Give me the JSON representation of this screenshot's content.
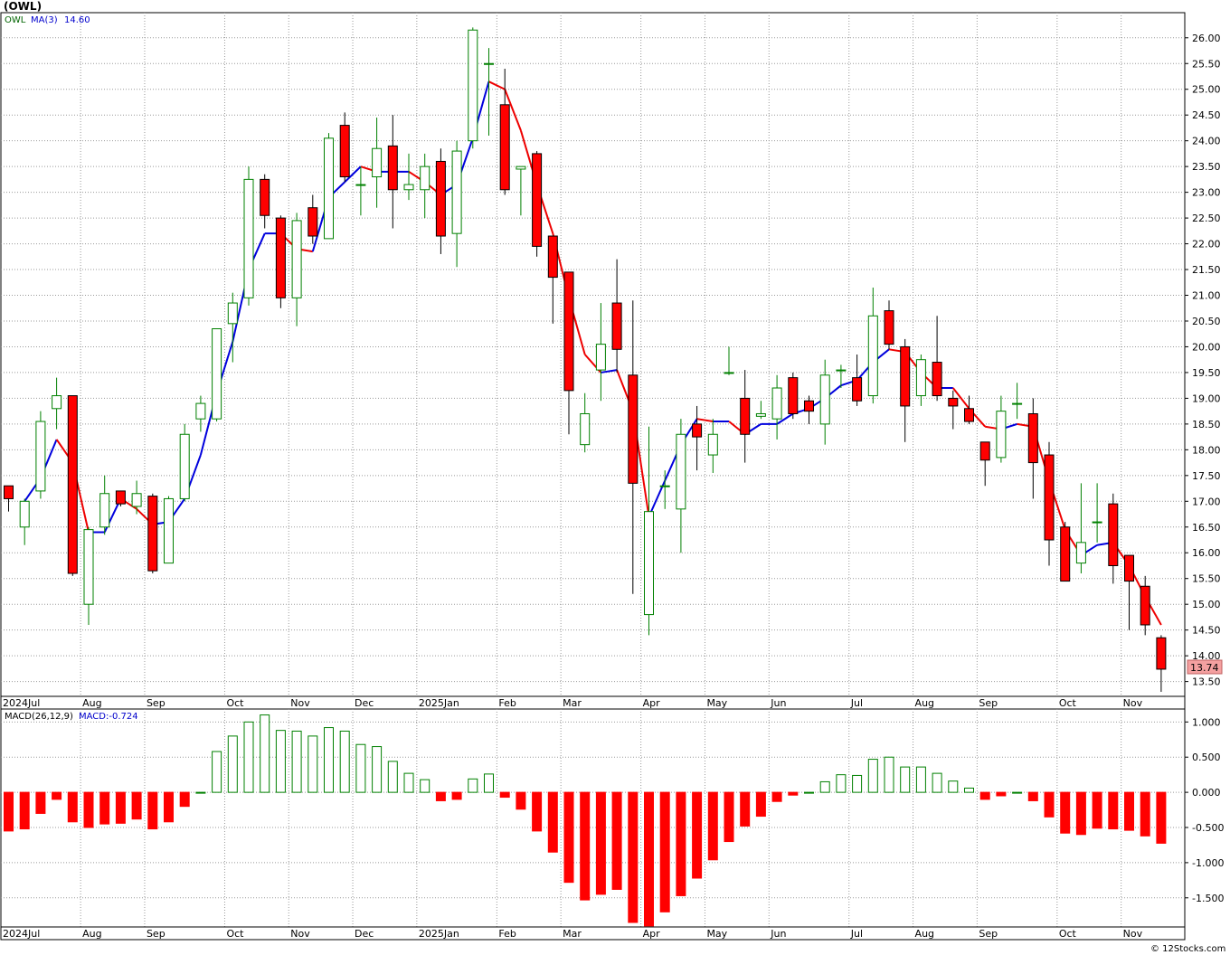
{
  "header": {
    "symbol": "(OWL)",
    "credit": "© 12Stocks.com"
  },
  "price_panel": {
    "legend_symbol": "OWL",
    "legend_ma_label": "MA(3)",
    "legend_ma_value": "14.60",
    "last_price_tag": "13.74"
  },
  "macd_panel": {
    "legend_label": "MACD(26,12,9)",
    "legend_value": "MACD:-0.724"
  },
  "colors": {
    "up": "#008000",
    "down": "#ff0000",
    "ma_up": "#0000dd",
    "ma_down": "#ee0000",
    "grid": "#999999",
    "tag_bg": "#f4a0a0"
  },
  "chart_data": [
    {
      "type": "candlestick",
      "title": "(OWL)",
      "period": "weekly",
      "ylim": [
        13.3,
        26.4
      ],
      "yticks": [
        "13.50",
        "14.00",
        "14.50",
        "15.00",
        "15.50",
        "16.00",
        "16.50",
        "17.00",
        "17.50",
        "18.00",
        "18.50",
        "19.00",
        "19.50",
        "20.00",
        "20.50",
        "21.00",
        "21.50",
        "22.00",
        "22.50",
        "23.00",
        "23.50",
        "24.00",
        "24.50",
        "25.00",
        "25.50",
        "26.00"
      ],
      "month_labels": [
        {
          "label": "2024Jul",
          "week": 0
        },
        {
          "label": "Aug",
          "week": 5
        },
        {
          "label": "Sep",
          "week": 9
        },
        {
          "label": "Oct",
          "week": 14
        },
        {
          "label": "Nov",
          "week": 18
        },
        {
          "label": "Dec",
          "week": 22
        },
        {
          "label": "2025Jan",
          "week": 26
        },
        {
          "label": "Feb",
          "week": 31
        },
        {
          "label": "Mar",
          "week": 35
        },
        {
          "label": "Apr",
          "week": 40
        },
        {
          "label": "May",
          "week": 44
        },
        {
          "label": "Jun",
          "week": 48
        },
        {
          "label": "Jul",
          "week": 53
        },
        {
          "label": "Aug",
          "week": 57
        },
        {
          "label": "Sep",
          "week": 61
        },
        {
          "label": "Oct",
          "week": 66
        },
        {
          "label": "Nov",
          "week": 70
        }
      ],
      "series": [
        {
          "name": "OWL",
          "candles": [
            {
              "o": 17.3,
              "h": 17.3,
              "l": 16.8,
              "c": 17.05
            },
            {
              "o": 16.5,
              "h": 17.05,
              "l": 16.15,
              "c": 17.0
            },
            {
              "o": 17.2,
              "h": 18.75,
              "l": 17.05,
              "c": 18.55
            },
            {
              "o": 18.8,
              "h": 19.4,
              "l": 18.4,
              "c": 19.05
            },
            {
              "o": 19.05,
              "h": 19.05,
              "l": 15.55,
              "c": 15.6
            },
            {
              "o": 15.0,
              "h": 16.5,
              "l": 14.6,
              "c": 16.45
            },
            {
              "o": 16.5,
              "h": 17.5,
              "l": 16.35,
              "c": 17.15
            },
            {
              "o": 17.2,
              "h": 17.2,
              "l": 16.9,
              "c": 16.95
            },
            {
              "o": 16.9,
              "h": 17.4,
              "l": 16.75,
              "c": 17.15
            },
            {
              "o": 17.1,
              "h": 17.15,
              "l": 15.6,
              "c": 15.65
            },
            {
              "o": 15.8,
              "h": 17.1,
              "l": 15.8,
              "c": 17.05
            },
            {
              "o": 17.05,
              "h": 18.5,
              "l": 17.0,
              "c": 18.3
            },
            {
              "o": 18.6,
              "h": 19.05,
              "l": 18.35,
              "c": 18.9
            },
            {
              "o": 18.6,
              "h": 20.35,
              "l": 18.55,
              "c": 20.35
            },
            {
              "o": 20.45,
              "h": 21.05,
              "l": 19.7,
              "c": 20.85
            },
            {
              "o": 20.95,
              "h": 23.5,
              "l": 20.8,
              "c": 23.25
            },
            {
              "o": 23.25,
              "h": 23.35,
              "l": 22.3,
              "c": 22.55
            },
            {
              "o": 22.5,
              "h": 22.55,
              "l": 20.75,
              "c": 20.95
            },
            {
              "o": 20.95,
              "h": 22.6,
              "l": 20.4,
              "c": 22.45
            },
            {
              "o": 22.7,
              "h": 22.95,
              "l": 22.0,
              "c": 22.15
            },
            {
              "o": 22.1,
              "h": 24.15,
              "l": 22.1,
              "c": 24.05
            },
            {
              "o": 24.3,
              "h": 24.55,
              "l": 23.2,
              "c": 23.3
            },
            {
              "o": 23.15,
              "h": 23.5,
              "l": 22.55,
              "c": 23.15
            },
            {
              "o": 23.3,
              "h": 24.45,
              "l": 22.7,
              "c": 23.85
            },
            {
              "o": 23.9,
              "h": 24.5,
              "l": 22.3,
              "c": 23.05
            },
            {
              "o": 23.05,
              "h": 23.75,
              "l": 22.85,
              "c": 23.15
            },
            {
              "o": 23.05,
              "h": 23.75,
              "l": 22.5,
              "c": 23.5
            },
            {
              "o": 23.6,
              "h": 23.85,
              "l": 21.8,
              "c": 22.15
            },
            {
              "o": 22.2,
              "h": 24.0,
              "l": 21.55,
              "c": 23.8
            },
            {
              "o": 24.0,
              "h": 26.2,
              "l": 23.85,
              "c": 26.15
            },
            {
              "o": 25.5,
              "h": 25.8,
              "l": 24.1,
              "c": 25.5
            },
            {
              "o": 24.7,
              "h": 25.4,
              "l": 22.95,
              "c": 23.05
            },
            {
              "o": 23.45,
              "h": 23.5,
              "l": 22.55,
              "c": 23.5
            },
            {
              "o": 23.75,
              "h": 23.8,
              "l": 21.75,
              "c": 21.95
            },
            {
              "o": 22.15,
              "h": 22.15,
              "l": 20.45,
              "c": 21.35
            },
            {
              "o": 21.45,
              "h": 21.45,
              "l": 18.3,
              "c": 19.15
            },
            {
              "o": 18.1,
              "h": 19.1,
              "l": 17.95,
              "c": 18.7
            },
            {
              "o": 19.55,
              "h": 20.85,
              "l": 18.95,
              "c": 20.05
            },
            {
              "o": 20.85,
              "h": 21.7,
              "l": 19.5,
              "c": 19.95
            },
            {
              "o": 19.45,
              "h": 20.9,
              "l": 15.2,
              "c": 17.35
            },
            {
              "o": 14.8,
              "h": 18.45,
              "l": 14.4,
              "c": 16.8
            },
            {
              "o": 17.3,
              "h": 17.6,
              "l": 16.85,
              "c": 17.3
            },
            {
              "o": 16.85,
              "h": 18.6,
              "l": 16.0,
              "c": 18.3
            },
            {
              "o": 18.5,
              "h": 18.85,
              "l": 17.6,
              "c": 18.25
            },
            {
              "o": 17.9,
              "h": 18.6,
              "l": 17.55,
              "c": 18.3
            },
            {
              "o": 19.5,
              "h": 20.0,
              "l": 19.45,
              "c": 19.5
            },
            {
              "o": 19.0,
              "h": 19.55,
              "l": 17.75,
              "c": 18.3
            },
            {
              "o": 18.65,
              "h": 18.95,
              "l": 18.6,
              "c": 18.7
            },
            {
              "o": 18.6,
              "h": 19.45,
              "l": 18.2,
              "c": 19.2
            },
            {
              "o": 19.4,
              "h": 19.5,
              "l": 18.6,
              "c": 18.7
            },
            {
              "o": 18.95,
              "h": 19.05,
              "l": 18.5,
              "c": 18.75
            },
            {
              "o": 18.5,
              "h": 19.75,
              "l": 18.1,
              "c": 19.45
            },
            {
              "o": 19.55,
              "h": 19.65,
              "l": 19.2,
              "c": 19.55
            },
            {
              "o": 19.4,
              "h": 19.85,
              "l": 18.85,
              "c": 18.95
            },
            {
              "o": 19.05,
              "h": 21.15,
              "l": 18.9,
              "c": 20.6
            },
            {
              "o": 20.7,
              "h": 20.9,
              "l": 19.95,
              "c": 20.05
            },
            {
              "o": 20.0,
              "h": 20.15,
              "l": 18.15,
              "c": 18.85
            },
            {
              "o": 19.05,
              "h": 19.85,
              "l": 18.85,
              "c": 19.75
            },
            {
              "o": 19.7,
              "h": 20.6,
              "l": 18.95,
              "c": 19.05
            },
            {
              "o": 19.0,
              "h": 19.15,
              "l": 18.4,
              "c": 18.85
            },
            {
              "o": 18.8,
              "h": 19.05,
              "l": 18.5,
              "c": 18.55
            },
            {
              "o": 18.15,
              "h": 18.15,
              "l": 17.3,
              "c": 17.8
            },
            {
              "o": 17.85,
              "h": 19.05,
              "l": 17.75,
              "c": 18.75
            },
            {
              "o": 18.9,
              "h": 19.3,
              "l": 18.6,
              "c": 18.9
            },
            {
              "o": 18.7,
              "h": 19.0,
              "l": 17.05,
              "c": 17.75
            },
            {
              "o": 17.9,
              "h": 18.15,
              "l": 15.75,
              "c": 16.25
            },
            {
              "o": 16.5,
              "h": 16.6,
              "l": 15.45,
              "c": 15.45
            },
            {
              "o": 15.8,
              "h": 17.35,
              "l": 15.6,
              "c": 16.2
            },
            {
              "o": 16.6,
              "h": 17.35,
              "l": 16.2,
              "c": 16.6
            },
            {
              "o": 16.95,
              "h": 17.15,
              "l": 15.4,
              "c": 15.75
            },
            {
              "o": 15.95,
              "h": 15.95,
              "l": 14.5,
              "c": 15.45
            },
            {
              "o": 15.35,
              "h": 15.55,
              "l": 14.4,
              "c": 14.6
            },
            {
              "o": 14.35,
              "h": 14.4,
              "l": 13.3,
              "c": 13.74
            }
          ]
        },
        {
          "name": "MA(3)",
          "values": [
            null,
            17.0,
            17.45,
            18.2,
            17.75,
            16.4,
            16.4,
            17.05,
            16.85,
            16.55,
            16.6,
            17.05,
            17.9,
            19.1,
            20.1,
            21.5,
            22.2,
            22.2,
            21.9,
            21.85,
            22.9,
            23.2,
            23.5,
            23.4,
            23.4,
            23.4,
            23.2,
            22.95,
            23.15,
            24.05,
            25.15,
            25.0,
            24.2,
            23.15,
            22.2,
            20.95,
            19.85,
            19.5,
            19.55,
            18.75,
            16.7,
            17.4,
            18.1,
            18.6,
            18.55,
            18.55,
            18.3,
            18.5,
            18.5,
            18.7,
            18.8,
            19.0,
            19.25,
            19.35,
            19.7,
            19.95,
            19.9,
            19.5,
            19.2,
            19.2,
            18.8,
            18.45,
            18.4,
            18.5,
            18.45,
            17.4,
            16.45,
            15.95,
            16.15,
            16.2,
            15.75,
            15.15,
            14.6
          ]
        }
      ]
    },
    {
      "type": "bar",
      "title": "MACD(26,12,9)",
      "ylim": [
        -1.85,
        1.12
      ],
      "yticks": [
        "1.000",
        "0.500",
        "0.000",
        "-0.500",
        "-1.000",
        "-1.500"
      ],
      "series": [
        {
          "name": "MACD",
          "values": [
            -0.55,
            -0.52,
            -0.3,
            -0.1,
            -0.42,
            -0.5,
            -0.45,
            -0.44,
            -0.38,
            -0.52,
            -0.42,
            -0.2,
            0.0,
            0.58,
            0.8,
            1.0,
            1.1,
            0.88,
            0.87,
            0.8,
            0.92,
            0.87,
            0.68,
            0.65,
            0.44,
            0.27,
            0.18,
            -0.12,
            -0.1,
            0.19,
            0.26,
            -0.07,
            -0.24,
            -0.55,
            -0.85,
            -1.28,
            -1.53,
            -1.45,
            -1.38,
            -1.85,
            -1.9,
            -1.7,
            -1.47,
            -1.22,
            -0.96,
            -0.7,
            -0.48,
            -0.34,
            -0.13,
            -0.04,
            0.0,
            0.15,
            0.25,
            0.24,
            0.47,
            0.5,
            0.36,
            0.36,
            0.27,
            0.16,
            0.06,
            -0.1,
            -0.05,
            0.0,
            -0.12,
            -0.35,
            -0.58,
            -0.6,
            -0.51,
            -0.52,
            -0.54,
            -0.62,
            -0.724
          ]
        }
      ]
    }
  ]
}
